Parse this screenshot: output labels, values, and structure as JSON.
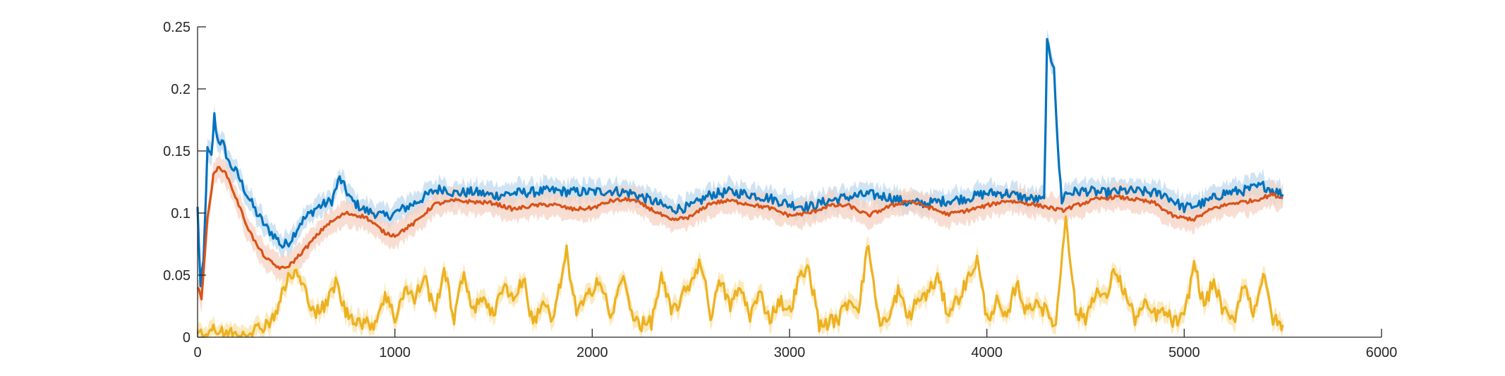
{
  "chart_data": {
    "type": "line",
    "title": "",
    "xlabel": "",
    "ylabel": "",
    "xlim": [
      0,
      6000
    ],
    "ylim": [
      0,
      0.25
    ],
    "x_ticks": [
      "0",
      "1000",
      "2000",
      "3000",
      "4000",
      "5000",
      "6000"
    ],
    "y_ticks": [
      "0",
      "0.05",
      "0.1",
      "0.15",
      "0.2",
      "0.25"
    ],
    "grid": false,
    "legend": "none",
    "x_end": 5500,
    "series": [
      {
        "color": "#0072BD",
        "band_color": "#BFD9EE",
        "band_halfwidth": 0.006,
        "points": [
          [
            0,
            0.105
          ],
          [
            15,
            0.04
          ],
          [
            30,
            0.06
          ],
          [
            50,
            0.15
          ],
          [
            70,
            0.145
          ],
          [
            85,
            0.178
          ],
          [
            100,
            0.16
          ],
          [
            130,
            0.155
          ],
          [
            160,
            0.14
          ],
          [
            200,
            0.132
          ],
          [
            250,
            0.115
          ],
          [
            300,
            0.1
          ],
          [
            350,
            0.088
          ],
          [
            400,
            0.08
          ],
          [
            430,
            0.073
          ],
          [
            470,
            0.078
          ],
          [
            520,
            0.092
          ],
          [
            600,
            0.104
          ],
          [
            680,
            0.11
          ],
          [
            720,
            0.128
          ],
          [
            780,
            0.11
          ],
          [
            850,
            0.102
          ],
          [
            900,
            0.1
          ],
          [
            950,
            0.097
          ],
          [
            1000,
            0.1
          ],
          [
            1100,
            0.108
          ],
          [
            1200,
            0.118
          ],
          [
            1250,
            0.12
          ],
          [
            1300,
            0.116
          ],
          [
            1400,
            0.117
          ],
          [
            1500,
            0.114
          ],
          [
            1600,
            0.116
          ],
          [
            1700,
            0.117
          ],
          [
            1800,
            0.118
          ],
          [
            1900,
            0.117
          ],
          [
            2000,
            0.117
          ],
          [
            2100,
            0.118
          ],
          [
            2200,
            0.116
          ],
          [
            2300,
            0.11
          ],
          [
            2400,
            0.103
          ],
          [
            2500,
            0.105
          ],
          [
            2600,
            0.115
          ],
          [
            2700,
            0.117
          ],
          [
            2800,
            0.115
          ],
          [
            2900,
            0.112
          ],
          [
            3000,
            0.107
          ],
          [
            3100,
            0.105
          ],
          [
            3200,
            0.11
          ],
          [
            3300,
            0.113
          ],
          [
            3400,
            0.115
          ],
          [
            3500,
            0.113
          ],
          [
            3600,
            0.108
          ],
          [
            3700,
            0.108
          ],
          [
            3800,
            0.11
          ],
          [
            3900,
            0.112
          ],
          [
            4000,
            0.116
          ],
          [
            4100,
            0.116
          ],
          [
            4200,
            0.112
          ],
          [
            4290,
            0.11
          ],
          [
            4305,
            0.237
          ],
          [
            4320,
            0.225
          ],
          [
            4340,
            0.22
          ],
          [
            4360,
            0.15
          ],
          [
            4380,
            0.11
          ],
          [
            4400,
            0.116
          ],
          [
            4500,
            0.118
          ],
          [
            4600,
            0.116
          ],
          [
            4700,
            0.118
          ],
          [
            4800,
            0.117
          ],
          [
            4900,
            0.115
          ],
          [
            5000,
            0.104
          ],
          [
            5100,
            0.108
          ],
          [
            5200,
            0.116
          ],
          [
            5300,
            0.118
          ],
          [
            5400,
            0.122
          ],
          [
            5500,
            0.115
          ]
        ]
      },
      {
        "color": "#D95319",
        "band_color": "#F5D3C3",
        "band_halfwidth": 0.007,
        "points": [
          [
            0,
            0.04
          ],
          [
            20,
            0.032
          ],
          [
            50,
            0.095
          ],
          [
            80,
            0.13
          ],
          [
            110,
            0.138
          ],
          [
            150,
            0.13
          ],
          [
            200,
            0.11
          ],
          [
            250,
            0.09
          ],
          [
            300,
            0.074
          ],
          [
            350,
            0.063
          ],
          [
            400,
            0.057
          ],
          [
            440,
            0.055
          ],
          [
            480,
            0.06
          ],
          [
            550,
            0.072
          ],
          [
            650,
            0.09
          ],
          [
            750,
            0.1
          ],
          [
            850,
            0.097
          ],
          [
            950,
            0.084
          ],
          [
            1000,
            0.082
          ],
          [
            1100,
            0.092
          ],
          [
            1200,
            0.107
          ],
          [
            1300,
            0.11
          ],
          [
            1400,
            0.109
          ],
          [
            1500,
            0.108
          ],
          [
            1600,
            0.103
          ],
          [
            1700,
            0.106
          ],
          [
            1800,
            0.107
          ],
          [
            1900,
            0.103
          ],
          [
            2000,
            0.104
          ],
          [
            2100,
            0.11
          ],
          [
            2200,
            0.111
          ],
          [
            2300,
            0.103
          ],
          [
            2400,
            0.094
          ],
          [
            2500,
            0.097
          ],
          [
            2600,
            0.108
          ],
          [
            2700,
            0.11
          ],
          [
            2800,
            0.107
          ],
          [
            2900,
            0.104
          ],
          [
            3000,
            0.098
          ],
          [
            3100,
            0.1
          ],
          [
            3200,
            0.106
          ],
          [
            3300,
            0.106
          ],
          [
            3400,
            0.098
          ],
          [
            3500,
            0.105
          ],
          [
            3600,
            0.11
          ],
          [
            3700,
            0.105
          ],
          [
            3800,
            0.099
          ],
          [
            3900,
            0.102
          ],
          [
            4000,
            0.106
          ],
          [
            4100,
            0.11
          ],
          [
            4200,
            0.108
          ],
          [
            4300,
            0.105
          ],
          [
            4380,
            0.102
          ],
          [
            4450,
            0.106
          ],
          [
            4550,
            0.111
          ],
          [
            4650,
            0.113
          ],
          [
            4750,
            0.111
          ],
          [
            4850,
            0.108
          ],
          [
            4950,
            0.097
          ],
          [
            5050,
            0.095
          ],
          [
            5150,
            0.104
          ],
          [
            5250,
            0.108
          ],
          [
            5350,
            0.11
          ],
          [
            5450,
            0.115
          ],
          [
            5500,
            0.112
          ]
        ]
      },
      {
        "color": "#EDB120",
        "band_color": "#F9E3A8",
        "band_halfwidth": 0.005,
        "points": [
          [
            0,
            0.003
          ],
          [
            50,
            0.002
          ],
          [
            80,
            0.01
          ],
          [
            100,
            0.003
          ],
          [
            200,
            0.003
          ],
          [
            300,
            0.006
          ],
          [
            380,
            0.015
          ],
          [
            420,
            0.03
          ],
          [
            460,
            0.048
          ],
          [
            500,
            0.052
          ],
          [
            550,
            0.035
          ],
          [
            600,
            0.02
          ],
          [
            650,
            0.025
          ],
          [
            700,
            0.045
          ],
          [
            750,
            0.02
          ],
          [
            850,
            0.01
          ],
          [
            900,
            0.012
          ],
          [
            950,
            0.035
          ],
          [
            1000,
            0.015
          ],
          [
            1050,
            0.04
          ],
          [
            1100,
            0.03
          ],
          [
            1150,
            0.05
          ],
          [
            1200,
            0.02
          ],
          [
            1250,
            0.055
          ],
          [
            1300,
            0.015
          ],
          [
            1350,
            0.052
          ],
          [
            1400,
            0.02
          ],
          [
            1450,
            0.035
          ],
          [
            1500,
            0.015
          ],
          [
            1550,
            0.045
          ],
          [
            1600,
            0.03
          ],
          [
            1650,
            0.048
          ],
          [
            1700,
            0.01
          ],
          [
            1750,
            0.03
          ],
          [
            1800,
            0.012
          ],
          [
            1870,
            0.068
          ],
          [
            1920,
            0.02
          ],
          [
            1970,
            0.03
          ],
          [
            2030,
            0.048
          ],
          [
            2100,
            0.015
          ],
          [
            2150,
            0.05
          ],
          [
            2200,
            0.02
          ],
          [
            2250,
            0.01
          ],
          [
            2300,
            0.012
          ],
          [
            2350,
            0.048
          ],
          [
            2400,
            0.02
          ],
          [
            2450,
            0.03
          ],
          [
            2500,
            0.045
          ],
          [
            2550,
            0.062
          ],
          [
            2600,
            0.018
          ],
          [
            2650,
            0.045
          ],
          [
            2700,
            0.025
          ],
          [
            2750,
            0.04
          ],
          [
            2800,
            0.018
          ],
          [
            2850,
            0.035
          ],
          [
            2900,
            0.015
          ],
          [
            2950,
            0.03
          ],
          [
            3000,
            0.02
          ],
          [
            3050,
            0.048
          ],
          [
            3100,
            0.055
          ],
          [
            3150,
            0.01
          ],
          [
            3200,
            0.012
          ],
          [
            3250,
            0.015
          ],
          [
            3300,
            0.03
          ],
          [
            3350,
            0.025
          ],
          [
            3400,
            0.075
          ],
          [
            3450,
            0.015
          ],
          [
            3500,
            0.012
          ],
          [
            3550,
            0.038
          ],
          [
            3600,
            0.015
          ],
          [
            3650,
            0.03
          ],
          [
            3700,
            0.035
          ],
          [
            3750,
            0.048
          ],
          [
            3800,
            0.02
          ],
          [
            3850,
            0.03
          ],
          [
            3900,
            0.045
          ],
          [
            3950,
            0.063
          ],
          [
            4000,
            0.015
          ],
          [
            4050,
            0.028
          ],
          [
            4100,
            0.012
          ],
          [
            4150,
            0.045
          ],
          [
            4200,
            0.02
          ],
          [
            4250,
            0.03
          ],
          [
            4300,
            0.02
          ],
          [
            4350,
            0.01
          ],
          [
            4400,
            0.1
          ],
          [
            4450,
            0.02
          ],
          [
            4500,
            0.015
          ],
          [
            4550,
            0.038
          ],
          [
            4600,
            0.03
          ],
          [
            4650,
            0.055
          ],
          [
            4700,
            0.035
          ],
          [
            4750,
            0.015
          ],
          [
            4800,
            0.025
          ],
          [
            4850,
            0.018
          ],
          [
            4900,
            0.02
          ],
          [
            4950,
            0.012
          ],
          [
            5000,
            0.015
          ],
          [
            5050,
            0.06
          ],
          [
            5100,
            0.025
          ],
          [
            5150,
            0.045
          ],
          [
            5200,
            0.02
          ],
          [
            5250,
            0.012
          ],
          [
            5300,
            0.045
          ],
          [
            5350,
            0.02
          ],
          [
            5400,
            0.05
          ],
          [
            5450,
            0.015
          ],
          [
            5480,
            0.01
          ],
          [
            5500,
            0.01
          ]
        ]
      }
    ]
  }
}
